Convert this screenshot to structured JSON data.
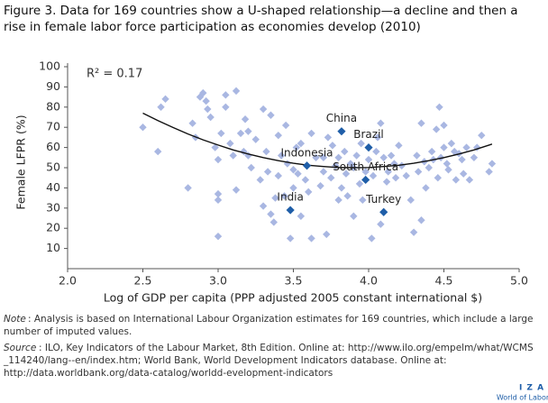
{
  "chart_data": {
    "type": "scatter",
    "title": [
      "Figure 3. Data for 169 countries show a U-shaped relationship—a decline and then a",
      "rise in female labor force participation as economies develop (2010)"
    ],
    "x_label": "Log of GDP per capita (PPP adjusted 2005 constant international $)",
    "y_label": "Female LFPR (%)",
    "annotation": "R² = 0.17",
    "xlim": [
      2,
      5
    ],
    "xticks": [
      {
        "value": 2,
        "label": "2.0"
      },
      {
        "value": 2.5,
        "label": "2.5"
      },
      {
        "value": 3,
        "label": "3.0"
      },
      {
        "value": 3.5,
        "label": "3.5"
      },
      {
        "value": 4,
        "label": "4.0"
      },
      {
        "value": 4.5,
        "label": "4.5"
      },
      {
        "value": 5,
        "label": "5.0"
      }
    ],
    "ylim": [
      0,
      100
    ],
    "yticks": [
      10,
      20,
      30,
      40,
      50,
      60,
      70,
      80,
      90,
      100
    ],
    "points": {
      "color": "#a9b7e2",
      "x": [
        2.5,
        2.6,
        2.62,
        2.65,
        2.8,
        2.83,
        2.85,
        2.88,
        2.9,
        2.92,
        2.93,
        2.95,
        2.98,
        3.0,
        3.0,
        3.0,
        3.0,
        3.02,
        3.05,
        3.05,
        3.08,
        3.1,
        3.12,
        3.12,
        3.15,
        3.17,
        3.18,
        3.2,
        3.2,
        3.22,
        3.25,
        3.28,
        3.3,
        3.3,
        3.32,
        3.33,
        3.35,
        3.35,
        3.37,
        3.38,
        3.4,
        3.4,
        3.42,
        3.44,
        3.45,
        3.46,
        3.48,
        3.5,
        3.5,
        3.52,
        3.53,
        3.55,
        3.55,
        3.58,
        3.6,
        3.62,
        3.62,
        3.65,
        3.68,
        3.7,
        3.7,
        3.72,
        3.73,
        3.75,
        3.76,
        3.78,
        3.8,
        3.8,
        3.82,
        3.84,
        3.85,
        3.86,
        3.88,
        3.9,
        3.9,
        3.92,
        3.94,
        3.95,
        3.96,
        3.98,
        4.0,
        4.02,
        4.03,
        4.05,
        4.06,
        4.08,
        4.08,
        4.1,
        4.12,
        4.13,
        4.15,
        4.17,
        4.18,
        4.2,
        4.22,
        4.25,
        4.28,
        4.3,
        4.32,
        4.33,
        4.35,
        4.35,
        4.37,
        4.38,
        4.4,
        4.42,
        4.43,
        4.45,
        4.46,
        4.47,
        4.48,
        4.5,
        4.5,
        4.52,
        4.53,
        4.55,
        4.57,
        4.58,
        4.6,
        4.62,
        4.63,
        4.65,
        4.67,
        4.7,
        4.72,
        4.75,
        4.8,
        4.82
      ],
      "values": [
        70,
        58,
        80,
        84,
        40,
        72,
        65,
        85,
        87,
        83,
        79,
        75,
        60,
        37,
        34,
        16,
        54,
        67,
        86,
        80,
        62,
        56,
        88,
        39,
        67,
        58,
        74,
        56,
        68,
        50,
        64,
        44,
        79,
        31,
        58,
        48,
        76,
        27,
        23,
        35,
        66,
        46,
        56,
        36,
        71,
        52,
        15,
        49,
        40,
        60,
        47,
        62,
        26,
        44,
        38,
        15,
        67,
        55,
        41,
        48,
        55,
        17,
        65,
        45,
        61,
        51,
        34,
        55,
        40,
        58,
        47,
        36,
        52,
        26,
        50,
        56,
        42,
        62,
        34,
        48,
        54,
        15,
        46,
        58,
        65,
        72,
        22,
        55,
        43,
        48,
        56,
        52,
        45,
        61,
        51,
        46,
        34,
        18,
        56,
        48,
        72,
        24,
        53,
        40,
        50,
        58,
        54,
        69,
        45,
        80,
        55,
        60,
        71,
        52,
        49,
        62,
        58,
        44,
        57,
        54,
        47,
        60,
        44,
        55,
        60,
        66,
        48,
        52
      ]
    },
    "highlights": {
      "color": "#1f5ea8",
      "labels": [
        "China",
        "Brazil",
        "Indonesia",
        "South Africa",
        "India",
        "Turkey"
      ],
      "x": [
        3.82,
        4.0,
        3.59,
        3.98,
        3.48,
        4.1
      ],
      "values": [
        68,
        60,
        51,
        44,
        29,
        28
      ]
    },
    "fit": {
      "color": "#111111",
      "x": [
        2.5,
        2.6,
        2.7,
        2.8,
        2.9,
        3.0,
        3.1,
        3.2,
        3.3,
        3.4,
        3.5,
        3.6,
        3.7,
        3.8,
        3.9,
        4.0,
        4.1,
        4.2,
        4.3,
        4.4,
        4.5,
        4.6,
        4.7,
        4.8,
        4.82
      ],
      "values": [
        77.0,
        73.3,
        69.9,
        66.7,
        63.8,
        61.2,
        58.8,
        56.8,
        55.0,
        53.5,
        52.2,
        51.2,
        50.6,
        50.1,
        50.0,
        50.1,
        50.6,
        51.2,
        52.2,
        53.5,
        55.0,
        56.8,
        58.8,
        61.2,
        61.7
      ]
    }
  },
  "note": {
    "label": "Note",
    "lines": [
      ": Analysis is based on International Labour Organization estimates for 169 countries, which include a large",
      "number of imputed values."
    ]
  },
  "source": {
    "label": "Source",
    "lines": [
      ": ILO, Key Indicators of the Labour Market, 8th Edition. Online at: http://www.ilo.org/empelm/what/WCMS",
      "_114240/lang--en/index.htm; World Bank, World Development Indicators database. Online at:",
      "http://data.worldbank.org/data-catalog/worldd-evelopment-indicators"
    ]
  },
  "logo": {
    "name": "I Z A",
    "tagline": "World of Labor"
  }
}
